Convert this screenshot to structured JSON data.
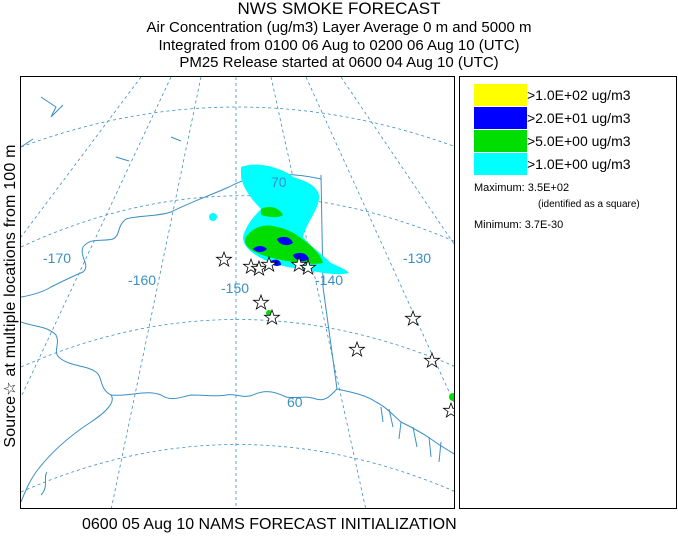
{
  "title": {
    "line1": "NWS SMOKE FORECAST",
    "line2": "Air Concentration (ug/m3) Layer Average    0 m and  5000 m",
    "line3": "Integrated from 0100 06 Aug to 0200 06 Aug 10 (UTC)",
    "line4": "PM25 Release started at 0600 04 Aug 10 (UTC)"
  },
  "side_label": "Source☆ at multiple locations  from   100 m",
  "footer": "0600 05 Aug 10 NAMS FORECAST INITIALIZATION",
  "map": {
    "longitude_labels": [
      "-170",
      "-160",
      "-150",
      "-140",
      "-130"
    ],
    "latitude_labels": [
      "70",
      "60"
    ],
    "colors": {
      "graticule": "#3b8fc4",
      "coast": "#3b8fc4"
    }
  },
  "legend": {
    "items": [
      {
        "label": ">1.0E+02 ug/m3",
        "color": "#ffff00"
      },
      {
        "label": ">2.0E+01 ug/m3",
        "color": "#0000ff"
      },
      {
        "label": ">5.0E+00 ug/m3",
        "color": "#00dd00"
      },
      {
        "label": ">1.0E+00 ug/m3",
        "color": "#00ffff"
      }
    ],
    "maximum_label": "Maximum: 3.5E+02",
    "maximum_note": "(identified as a square)",
    "minimum_label": "Minimum: 3.7E-30"
  }
}
